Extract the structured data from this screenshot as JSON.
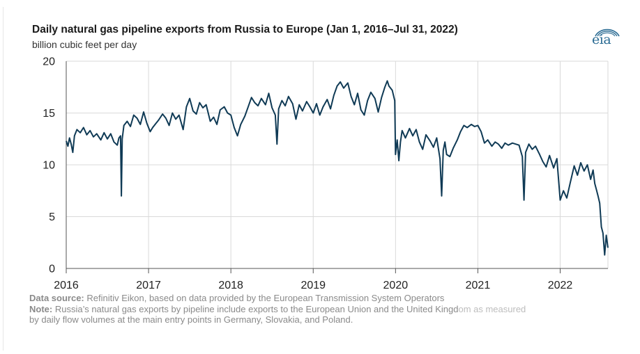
{
  "header": {
    "title": "Daily natural gas pipeline exports from Russia to Europe (Jan 1, 2016–Jul 31, 2022)",
    "subtitle": "billion cubic feet per day",
    "logo_text": "eia"
  },
  "footer": {
    "source_label": "Data source:",
    "source_text": " Refinitiv Eikon, based on data provided by the European Transmission System Operators",
    "note_label": "Note:",
    "note_text": " Russia’s natural gas exports by pipeline include exports to the European Union and the United Kingd",
    "note_obscured": "om as measured",
    "note_text_2": "by daily flow volumes at the main entry points in Germany, Slovakia, and Poland."
  },
  "colors": {
    "line": "#0f3a55",
    "grid": "#d9d9d9",
    "axis": "#555555",
    "logo": "#2a6b93"
  },
  "chart_data": {
    "type": "line",
    "title": "Daily natural gas pipeline exports from Russia to Europe (Jan 1, 2016–Jul 31, 2022)",
    "ylabel": "billion cubic feet per day",
    "xlabel": "",
    "ylim": [
      0,
      20
    ],
    "yticks": [
      "0",
      "5",
      "10",
      "15",
      "20"
    ],
    "xlim": [
      2016.0,
      2022.58
    ],
    "xticks": [
      "2016",
      "2017",
      "2018",
      "2019",
      "2020",
      "2021",
      "2022"
    ],
    "grid": "vertical and horizontal",
    "series": [
      {
        "values_description": "fractional year -> bcf/d",
        "x": [
          2016.0,
          2016.02,
          2016.04,
          2016.06,
          2016.08,
          2016.1,
          2016.13,
          2016.17,
          2016.21,
          2016.25,
          2016.29,
          2016.33,
          2016.37,
          2016.42,
          2016.46,
          2016.5,
          2016.54,
          2016.58,
          2016.62,
          2016.64,
          2016.66,
          2016.67,
          2016.68,
          2016.7,
          2016.74,
          2016.78,
          2016.82,
          2016.86,
          2016.9,
          2016.94,
          2016.98,
          2017.02,
          2017.05,
          2017.08,
          2017.12,
          2017.17,
          2017.21,
          2017.25,
          2017.29,
          2017.33,
          2017.37,
          2017.42,
          2017.46,
          2017.5,
          2017.54,
          2017.58,
          2017.62,
          2017.66,
          2017.7,
          2017.75,
          2017.79,
          2017.83,
          2017.87,
          2017.92,
          2017.96,
          2018.0,
          2018.04,
          2018.08,
          2018.12,
          2018.17,
          2018.21,
          2018.25,
          2018.29,
          2018.33,
          2018.37,
          2018.42,
          2018.46,
          2018.5,
          2018.54,
          2018.56,
          2018.58,
          2018.62,
          2018.66,
          2018.7,
          2018.75,
          2018.79,
          2018.83,
          2018.87,
          2018.92,
          2018.96,
          2019.0,
          2019.04,
          2019.08,
          2019.12,
          2019.17,
          2019.21,
          2019.25,
          2019.29,
          2019.33,
          2019.37,
          2019.42,
          2019.46,
          2019.5,
          2019.54,
          2019.58,
          2019.62,
          2019.66,
          2019.7,
          2019.75,
          2019.79,
          2019.83,
          2019.87,
          2019.9,
          2019.92,
          2019.96,
          2019.99,
          2020.0,
          2020.02,
          2020.04,
          2020.06,
          2020.08,
          2020.12,
          2020.17,
          2020.21,
          2020.25,
          2020.29,
          2020.33,
          2020.37,
          2020.42,
          2020.46,
          2020.5,
          2020.54,
          2020.56,
          2020.58,
          2020.6,
          2020.62,
          2020.66,
          2020.7,
          2020.75,
          2020.79,
          2020.83,
          2020.87,
          2020.92,
          2020.96,
          2021.0,
          2021.04,
          2021.08,
          2021.12,
          2021.17,
          2021.21,
          2021.25,
          2021.29,
          2021.33,
          2021.37,
          2021.42,
          2021.46,
          2021.5,
          2021.54,
          2021.56,
          2021.58,
          2021.62,
          2021.66,
          2021.7,
          2021.75,
          2021.79,
          2021.83,
          2021.87,
          2021.92,
          2021.96,
          2022.0,
          2022.04,
          2022.08,
          2022.12,
          2022.17,
          2022.21,
          2022.25,
          2022.29,
          2022.33,
          2022.37,
          2022.4,
          2022.42,
          2022.44,
          2022.46,
          2022.48,
          2022.5,
          2022.52,
          2022.54,
          2022.56,
          2022.58
        ],
        "values": [
          12.3,
          11.8,
          12.6,
          12.0,
          11.2,
          12.8,
          13.4,
          13.1,
          13.6,
          12.9,
          13.3,
          12.7,
          13.0,
          12.4,
          13.1,
          12.5,
          13.0,
          12.2,
          11.9,
          12.6,
          12.8,
          7.0,
          12.5,
          13.8,
          14.2,
          13.7,
          14.8,
          14.5,
          13.9,
          15.1,
          14.0,
          13.2,
          13.6,
          13.9,
          14.3,
          14.9,
          14.5,
          13.8,
          15.0,
          14.4,
          14.8,
          13.4,
          15.6,
          16.4,
          15.2,
          14.9,
          16.0,
          15.5,
          15.8,
          14.2,
          14.6,
          13.9,
          15.3,
          15.6,
          15.0,
          14.8,
          13.6,
          12.8,
          13.9,
          14.7,
          15.6,
          16.5,
          16.0,
          15.7,
          16.4,
          15.8,
          16.9,
          15.5,
          14.8,
          12.0,
          15.4,
          16.2,
          15.7,
          16.6,
          15.9,
          14.4,
          15.8,
          15.2,
          16.1,
          15.6,
          15.0,
          15.9,
          14.8,
          15.6,
          16.3,
          15.4,
          16.7,
          17.6,
          18.0,
          17.4,
          17.9,
          16.6,
          15.8,
          16.9,
          15.3,
          14.8,
          16.2,
          17.0,
          16.4,
          15.1,
          16.5,
          17.5,
          18.1,
          17.6,
          17.2,
          16.2,
          11.0,
          12.4,
          10.4,
          12.2,
          13.3,
          12.6,
          13.5,
          12.8,
          13.4,
          12.2,
          11.5,
          12.9,
          12.3,
          11.7,
          12.6,
          10.6,
          7.0,
          11.4,
          12.2,
          11.0,
          10.8,
          11.6,
          12.4,
          13.2,
          13.8,
          13.6,
          13.9,
          13.7,
          13.8,
          13.2,
          12.1,
          12.4,
          11.8,
          12.2,
          12.0,
          11.6,
          12.1,
          11.9,
          12.1,
          12.0,
          11.9,
          10.8,
          6.6,
          11.2,
          12.0,
          11.5,
          11.8,
          11.0,
          10.3,
          9.8,
          10.9,
          9.7,
          10.6,
          6.6,
          7.5,
          6.8,
          8.2,
          9.9,
          9.0,
          10.2,
          9.4,
          10.0,
          8.6,
          9.5,
          8.2,
          7.6,
          7.0,
          6.3,
          4.0,
          3.4,
          1.3,
          3.2,
          2.0
        ]
      }
    ]
  }
}
